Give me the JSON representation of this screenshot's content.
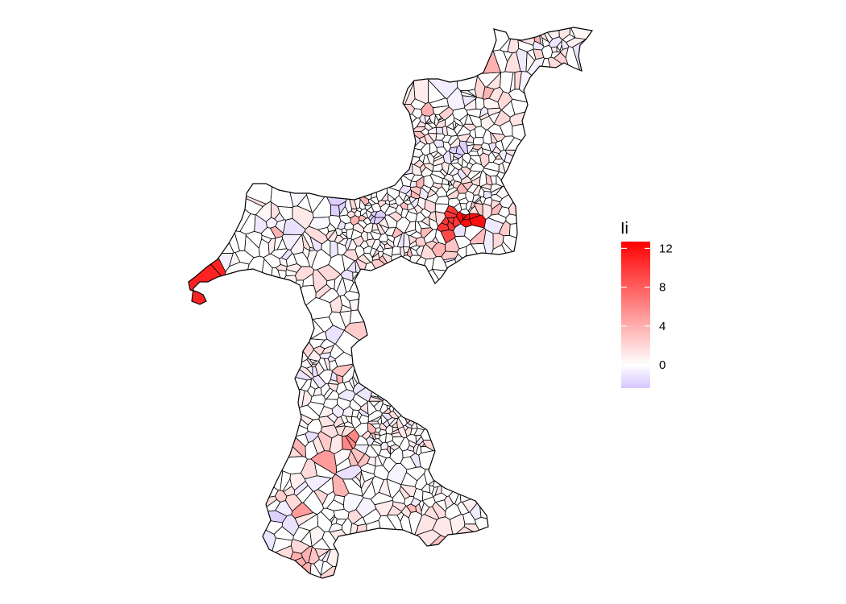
{
  "map": {
    "type": "choropleth-voronoi",
    "fill_variable": "Ii",
    "outline_color": "#000000"
  },
  "legend": {
    "title": "Ii",
    "ticks": [
      "12",
      "8",
      "4",
      "0"
    ],
    "tick_values": [
      12,
      8,
      4,
      0
    ],
    "min": -2.4,
    "max": 12.7,
    "low_color": "#d6c6ff",
    "mid_color": "#ffffff",
    "high_color": "#ff0000",
    "midpoint": 0
  }
}
